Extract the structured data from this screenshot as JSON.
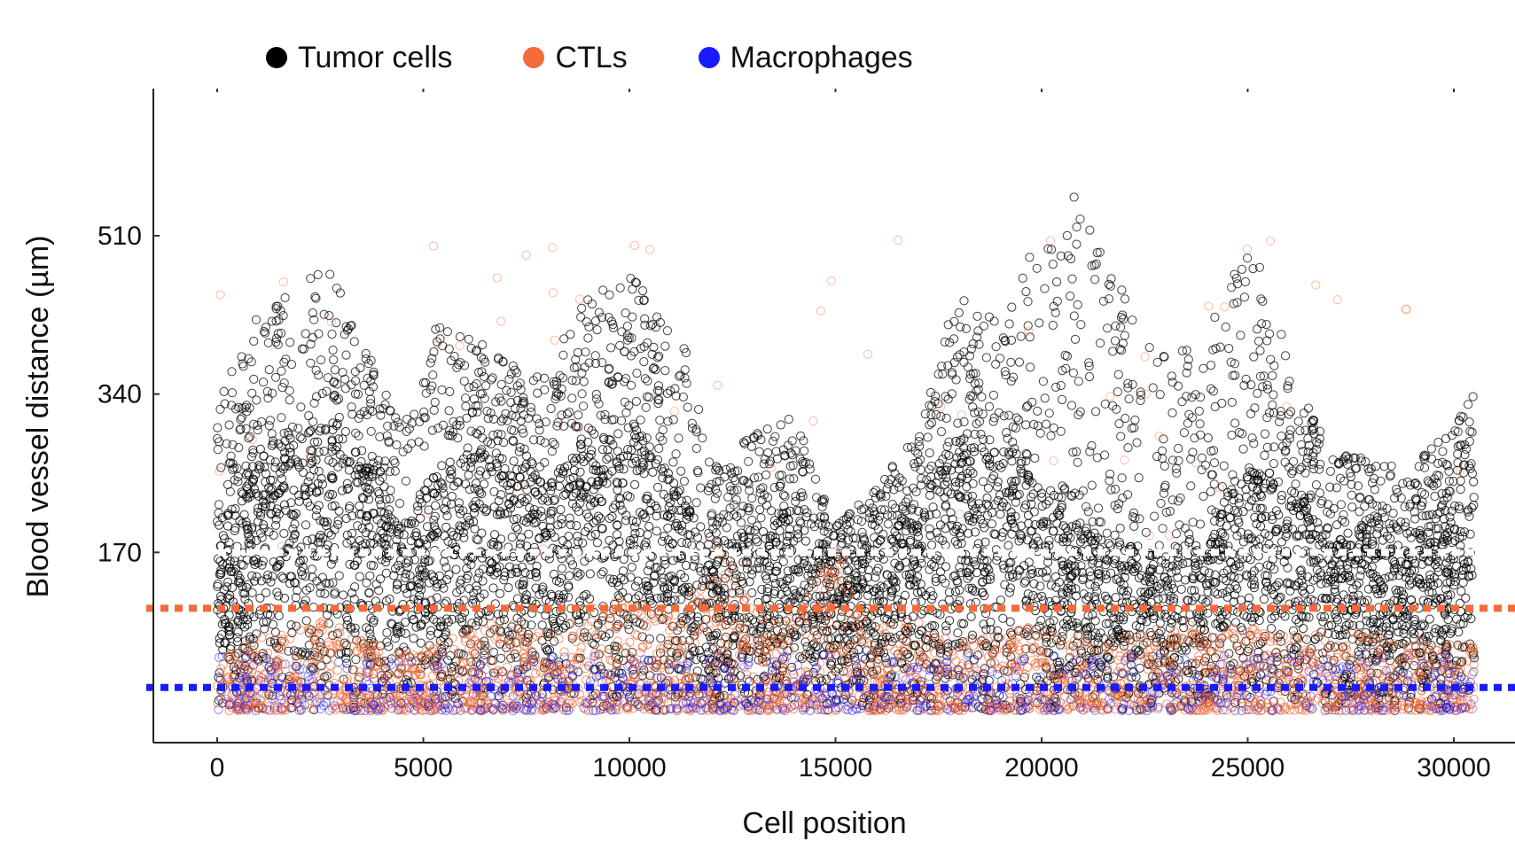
{
  "chart_data": {
    "type": "scatter",
    "xlabel": "Cell position",
    "ylabel": "Blood vessel distance (µm)",
    "xlim": [
      -1500,
      31000
    ],
    "ylim": [
      -20,
      640
    ],
    "x_ticks": [
      0,
      5000,
      10000,
      15000,
      20000,
      25000,
      30000
    ],
    "x_tick_labels": [
      "0",
      "5000",
      "10000",
      "15000",
      "20000",
      "25000",
      "30000"
    ],
    "y_ticks": [
      170,
      340,
      510
    ],
    "y_tick_labels": [
      "170",
      "340",
      "510"
    ],
    "legend_position": "top",
    "marker": "open-circle",
    "series": [
      {
        "name": "Tumor cells",
        "color": "#000000"
      },
      {
        "name": "CTLs",
        "color": "#f26b38"
      },
      {
        "name": "Macrophages",
        "color": "#1a1aff"
      }
    ],
    "reference_lines": [
      {
        "color": "#ffffff",
        "y": 170,
        "style": "dotted"
      },
      {
        "color": "#f26b38",
        "y": 110,
        "style": "dotted"
      },
      {
        "color": "#1a1aff",
        "y": 25,
        "style": "dotted"
      }
    ],
    "envelope": {
      "x": [
        0,
        1000,
        2000,
        2700,
        3500,
        4500,
        5300,
        6200,
        7200,
        8000,
        9000,
        10000,
        11300,
        12000,
        13000,
        14000,
        15000,
        16000,
        17000,
        18000,
        19000,
        20000,
        21000,
        22000,
        23000,
        24000,
        25000,
        26000,
        27000,
        28000,
        29000,
        30500
      ],
      "upper": [
        330,
        430,
        460,
        480,
        400,
        300,
        420,
        400,
        370,
        360,
        460,
        470,
        400,
        260,
        300,
        320,
        200,
        240,
        300,
        460,
        420,
        520,
        560,
        450,
        380,
        400,
        520,
        380,
        280,
        270,
        260,
        340
      ],
      "dense_top": [
        200,
        280,
        300,
        320,
        290,
        200,
        260,
        280,
        300,
        240,
        300,
        310,
        240,
        180,
        200,
        220,
        160,
        180,
        220,
        300,
        290,
        250,
        200,
        180,
        170,
        200,
        260,
        240,
        200,
        200,
        190,
        260
      ],
      "ctl_top": [
        60,
        80,
        90,
        100,
        80,
        60,
        70,
        90,
        100,
        80,
        110,
        120,
        100,
        200,
        110,
        100,
        180,
        90,
        100,
        80,
        90,
        100,
        80,
        80,
        90,
        100,
        90,
        80,
        90,
        80,
        80,
        70
      ]
    }
  }
}
